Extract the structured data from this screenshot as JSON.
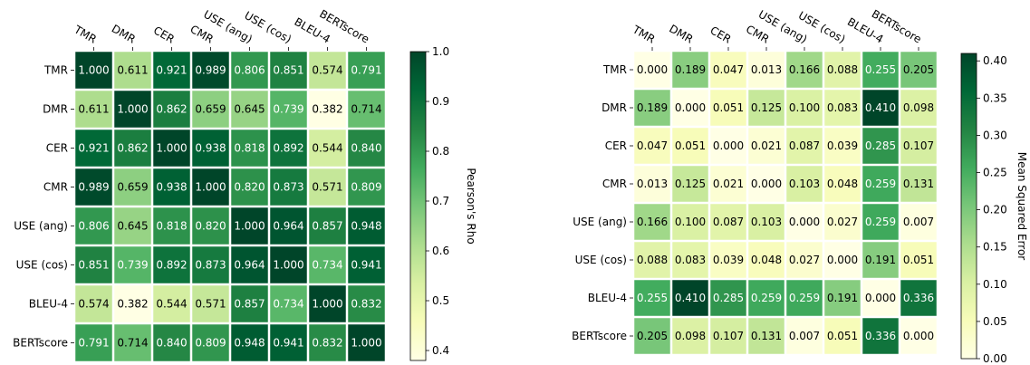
{
  "chart_data": [
    {
      "type": "heatmap",
      "labels": [
        "TMR",
        "DMR",
        "CER",
        "CMR",
        "USE (ang)",
        "USE (cos)",
        "BLEU-4",
        "BERTscore"
      ],
      "values": [
        [
          1.0,
          0.611,
          0.921,
          0.989,
          0.806,
          0.851,
          0.574,
          0.791
        ],
        [
          0.611,
          1.0,
          0.862,
          0.659,
          0.645,
          0.739,
          0.382,
          0.714
        ],
        [
          0.921,
          0.862,
          1.0,
          0.938,
          0.818,
          0.892,
          0.544,
          0.84
        ],
        [
          0.989,
          0.659,
          0.938,
          1.0,
          0.82,
          0.873,
          0.571,
          0.809
        ],
        [
          0.806,
          0.645,
          0.818,
          0.82,
          1.0,
          0.964,
          0.857,
          0.948
        ],
        [
          0.851,
          0.739,
          0.892,
          0.873,
          0.964,
          1.0,
          0.734,
          0.941
        ],
        [
          0.574,
          0.382,
          0.544,
          0.571,
          0.857,
          0.734,
          1.0,
          0.832
        ],
        [
          0.791,
          0.714,
          0.84,
          0.809,
          0.948,
          0.941,
          0.832,
          1.0
        ]
      ],
      "colormap": "YlGn",
      "vmin": 0.38,
      "vmax": 1.0,
      "colorbar_label": "Pearson's Rho",
      "colorbar_ticks": [
        0.4,
        0.5,
        0.6,
        0.7,
        0.8,
        0.9,
        1.0
      ],
      "colorbar_tick_labels": [
        "0.4",
        "0.5",
        "0.6",
        "0.7",
        "0.8",
        "0.9",
        "1.0"
      ]
    },
    {
      "type": "heatmap",
      "labels": [
        "TMR",
        "DMR",
        "CER",
        "CMR",
        "USE (ang)",
        "USE (cos)",
        "BLEU-4",
        "BERTscore"
      ],
      "values": [
        [
          0.0,
          0.189,
          0.047,
          0.013,
          0.166,
          0.088,
          0.255,
          0.205
        ],
        [
          0.189,
          0.0,
          0.051,
          0.125,
          0.1,
          0.083,
          0.41,
          0.098
        ],
        [
          0.047,
          0.051,
          0.0,
          0.021,
          0.087,
          0.039,
          0.285,
          0.107
        ],
        [
          0.013,
          0.125,
          0.021,
          0.0,
          0.103,
          0.048,
          0.259,
          0.131
        ],
        [
          0.166,
          0.1,
          0.087,
          0.103,
          0.0,
          0.027,
          0.259,
          0.007
        ],
        [
          0.088,
          0.083,
          0.039,
          0.048,
          0.027,
          0.0,
          0.191,
          0.051
        ],
        [
          0.255,
          0.41,
          0.285,
          0.259,
          0.259,
          0.191,
          0.0,
          0.336
        ],
        [
          0.205,
          0.098,
          0.107,
          0.131,
          0.007,
          0.051,
          0.336,
          0.0
        ]
      ],
      "colormap": "YlGn",
      "vmin": 0.0,
      "vmax": 0.41,
      "colorbar_label": "Mean Squared Error",
      "colorbar_ticks": [
        0.0,
        0.05,
        0.1,
        0.15,
        0.2,
        0.25,
        0.3,
        0.35,
        0.4
      ],
      "colorbar_tick_labels": [
        "0.00",
        "0.05",
        "0.10",
        "0.15",
        "0.20",
        "0.25",
        "0.30",
        "0.35",
        "0.40"
      ]
    }
  ],
  "colormap_stops": [
    "#ffffe5",
    "#f7fcb9",
    "#d9f0a3",
    "#addd8e",
    "#78c679",
    "#41ab5d",
    "#238443",
    "#006837",
    "#004529"
  ]
}
